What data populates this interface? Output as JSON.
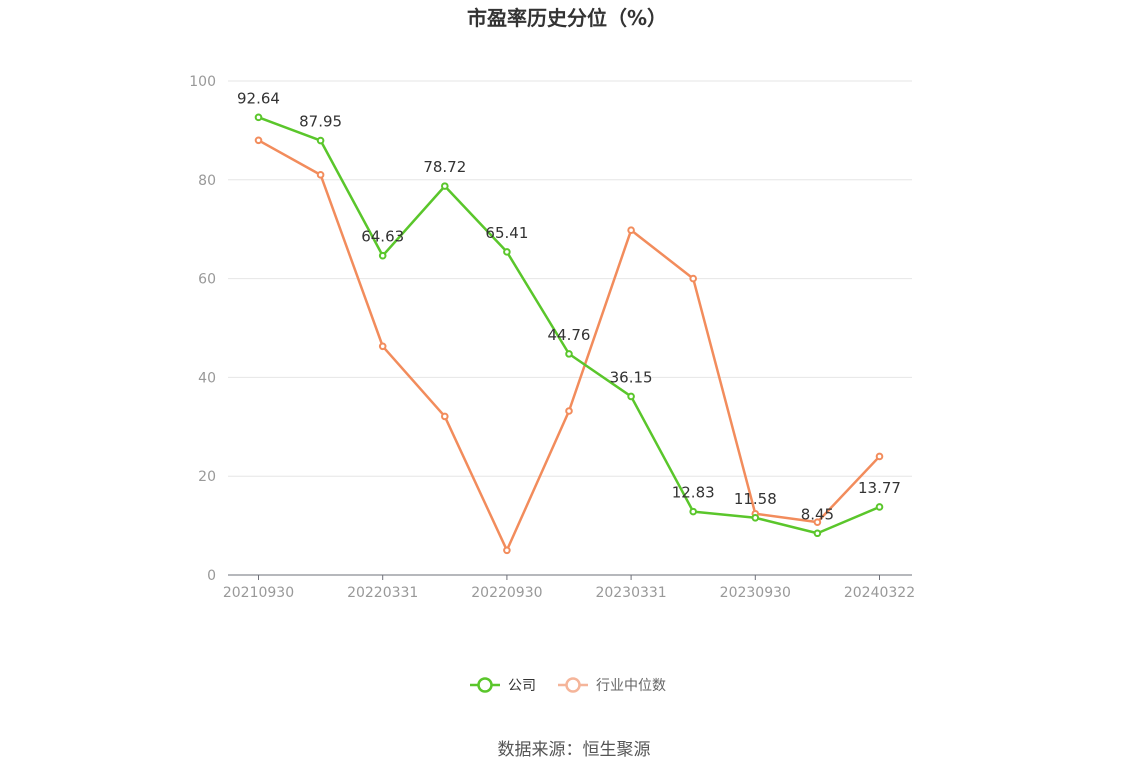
{
  "chart_data": {
    "type": "line",
    "title": "市盈率历史分位（%）",
    "x": [
      "20210930",
      "20211231",
      "20220331",
      "20220630",
      "20220930",
      "20221231",
      "20230331",
      "20230630",
      "20230930",
      "20231231",
      "20240322"
    ],
    "x_tick_labels": [
      "20210930",
      "20220331",
      "20220930",
      "20230331",
      "20230930",
      "20240322"
    ],
    "ylim": [
      0,
      100
    ],
    "y_ticks": [
      0,
      20,
      40,
      60,
      80,
      100
    ],
    "grid": true,
    "legend_position": "bottom",
    "series": [
      {
        "name": "公司",
        "color": "#5ac62b",
        "values": [
          92.64,
          87.95,
          64.63,
          78.72,
          65.41,
          44.76,
          36.15,
          12.83,
          11.58,
          8.45,
          13.77
        ],
        "labels": [
          "92.64",
          "87.95",
          "64.63",
          "78.72",
          "65.41",
          "44.76",
          "36.15",
          "12.83",
          "11.58",
          "8.45",
          "13.77"
        ]
      },
      {
        "name": "行业中位数",
        "color": "#f28c5c",
        "legend_color": "#f5b59a",
        "values": [
          88,
          81,
          46.3,
          32.1,
          5,
          33.2,
          69.8,
          60,
          12.4,
          10.7,
          24
        ]
      }
    ],
    "source": "数据来源：恒生聚源"
  }
}
